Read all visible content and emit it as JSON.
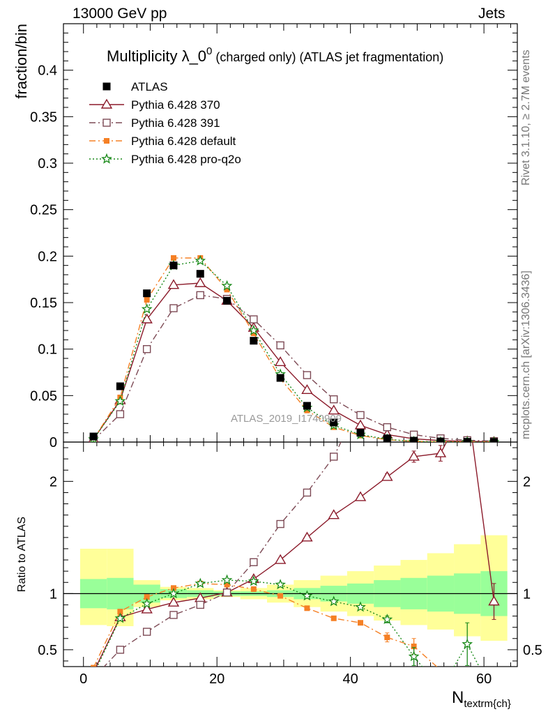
{
  "header": {
    "left": "13000 GeV pp",
    "right": "Jets"
  },
  "side_labels": {
    "rivet": "Rivet 3.1.10, ≥ 2.7M events",
    "mcplots": "mcplots.cern.ch [arXiv:1306.3436]"
  },
  "chart_data": {
    "type": "scatter",
    "title": "Multiplicity λ_0^0 (charged only) (ATLAS jet fragmentation)",
    "title_main": "Multiplicity λ_0",
    "title_sup": "0",
    "title_tail": " (charged only) (ATLAS jet fragmentation)",
    "watermark": "ATLAS_2019_I1740909",
    "xlabel_main": "N",
    "xlabel_sub": "textrm{ch}",
    "ylabel_top": "fraction/bin",
    "ylabel_bottom": "Ratio to ATLAS",
    "xlim": [
      -3,
      65
    ],
    "ylim_top": [
      0,
      0.45
    ],
    "ylim_bottom": [
      0.35,
      2.35
    ],
    "x_ticks": [
      0,
      20,
      40,
      60
    ],
    "x_tick_labels": [
      "0",
      "20",
      "40",
      "60"
    ],
    "y_ticks_top": [
      0,
      0.05,
      0.1,
      0.15,
      0.2,
      0.25,
      0.3,
      0.35,
      0.4
    ],
    "y_tick_labels_top": [
      "0",
      "0.05",
      "0.1",
      "0.15",
      "0.2",
      "0.25",
      "0.3",
      "0.35",
      "0.4"
    ],
    "y_ticks_bottom": [
      0.5,
      1,
      2
    ],
    "y_tick_labels_bottom": [
      "0.5",
      "1",
      "2"
    ],
    "x": [
      1.5,
      5.5,
      9.5,
      13.5,
      17.5,
      21.5,
      25.5,
      29.5,
      33.5,
      37.5,
      41.5,
      45.5,
      49.5,
      53.5,
      57.5,
      61.5
    ],
    "bin_edges": [
      -0.5,
      3.5,
      7.5,
      11.5,
      15.5,
      19.5,
      23.5,
      27.5,
      31.5,
      35.5,
      39.5,
      43.5,
      47.5,
      51.5,
      55.5,
      59.5,
      63.5
    ],
    "data": {
      "name": "ATLAS",
      "values": [
        0.006,
        0.06,
        0.16,
        0.19,
        0.181,
        0.152,
        0.109,
        0.069,
        0.039,
        0.021,
        0.01,
        0.004,
        0.0015,
        0.0007,
        0.0003,
        0.0001
      ]
    },
    "series": [
      {
        "name": "Pythia 6.428 370",
        "color": "#8b1a2a",
        "marker": "triangle-open",
        "dash": "",
        "values": [
          0.003,
          0.045,
          0.132,
          0.169,
          0.171,
          0.152,
          0.123,
          0.086,
          0.056,
          0.034,
          0.018,
          0.008,
          0.0035,
          0.0016,
          0.0008,
          0.0003
        ],
        "ratio": [
          0.3,
          0.79,
          0.86,
          0.92,
          0.96,
          1.01,
          1.13,
          1.3,
          1.5,
          1.7,
          1.86,
          2.04,
          2.22,
          2.25,
          2.7,
          0.93
        ],
        "ratio_err": [
          0,
          0,
          0,
          0,
          0,
          0,
          0,
          0,
          0,
          0,
          0,
          0.03,
          0.05,
          0.07,
          0,
          0.16
        ]
      },
      {
        "name": "Pythia 6.428 391",
        "color": "#7d4a55",
        "marker": "square-open",
        "dash": "9,4,2,4",
        "values": [
          0.002,
          0.03,
          0.1,
          0.144,
          0.158,
          0.154,
          0.132,
          0.104,
          0.072,
          0.046,
          0.029,
          0.016,
          0.008,
          0.004,
          0.002,
          0.001
        ],
        "ratio": [
          0.25,
          0.5,
          0.66,
          0.81,
          0.9,
          1.01,
          1.28,
          1.62,
          1.9,
          2.22,
          2.7,
          3.0,
          3.4,
          3.8,
          4.2,
          4.5
        ],
        "ratio_err": [
          0,
          0,
          0,
          0,
          0,
          0,
          0,
          0,
          0,
          0,
          0,
          0,
          0,
          0,
          0,
          0
        ]
      },
      {
        "name": "Pythia 6.428 default",
        "color": "#f58025",
        "marker": "square-filled",
        "dash": "9,4,2,4",
        "values": [
          0.003,
          0.048,
          0.153,
          0.198,
          0.198,
          0.164,
          0.117,
          0.068,
          0.034,
          0.016,
          0.007,
          0.0025,
          0.0008,
          0.0002,
          0.0001,
          0.0
        ],
        "ratio": [
          0.34,
          0.84,
          0.97,
          1.05,
          1.09,
          1.08,
          1.04,
          0.98,
          0.87,
          0.78,
          0.74,
          0.61,
          0.53,
          0.32,
          0.2,
          0.1
        ],
        "ratio_err": [
          0.02,
          0,
          0,
          0,
          0,
          0,
          0,
          0,
          0,
          0.01,
          0.02,
          0.04,
          0.07,
          0,
          0,
          0
        ]
      },
      {
        "name": "Pythia 6.428 pro-q2o",
        "color": "#1a8a1a",
        "marker": "star",
        "dash": "2,3",
        "values": [
          0.003,
          0.044,
          0.143,
          0.19,
          0.195,
          0.168,
          0.12,
          0.073,
          0.037,
          0.018,
          0.008,
          0.003,
          0.0007,
          0.0002,
          0.0002,
          0.0
        ],
        "ratio": [
          0.28,
          0.78,
          0.91,
          1.0,
          1.09,
          1.12,
          1.11,
          1.08,
          0.98,
          0.93,
          0.88,
          0.77,
          0.44,
          0.15,
          0.55,
          0.1
        ],
        "ratio_err": [
          0,
          0,
          0,
          0,
          0,
          0,
          0,
          0,
          0,
          0,
          0,
          0.03,
          0.08,
          0,
          0.19,
          0
        ]
      }
    ],
    "uncertainty_band": {
      "inner_lo": [
        0.87,
        0.86,
        0.92,
        0.96,
        0.97,
        0.98,
        0.98,
        0.97,
        0.95,
        0.93,
        0.91,
        0.88,
        0.86,
        0.84,
        0.82,
        0.8
      ],
      "inner_hi": [
        1.13,
        1.14,
        1.08,
        1.04,
        1.03,
        1.02,
        1.02,
        1.03,
        1.05,
        1.07,
        1.09,
        1.12,
        1.14,
        1.16,
        1.18,
        1.2
      ],
      "outer_lo": [
        0.72,
        0.71,
        0.88,
        0.94,
        0.95,
        0.97,
        0.95,
        0.92,
        0.88,
        0.84,
        0.8,
        0.76,
        0.72,
        0.68,
        0.62,
        0.58
      ],
      "outer_hi": [
        1.4,
        1.4,
        1.12,
        1.06,
        1.05,
        1.03,
        1.05,
        1.08,
        1.12,
        1.16,
        1.2,
        1.25,
        1.3,
        1.36,
        1.44,
        1.52
      ]
    },
    "legend_position": "top-left"
  }
}
